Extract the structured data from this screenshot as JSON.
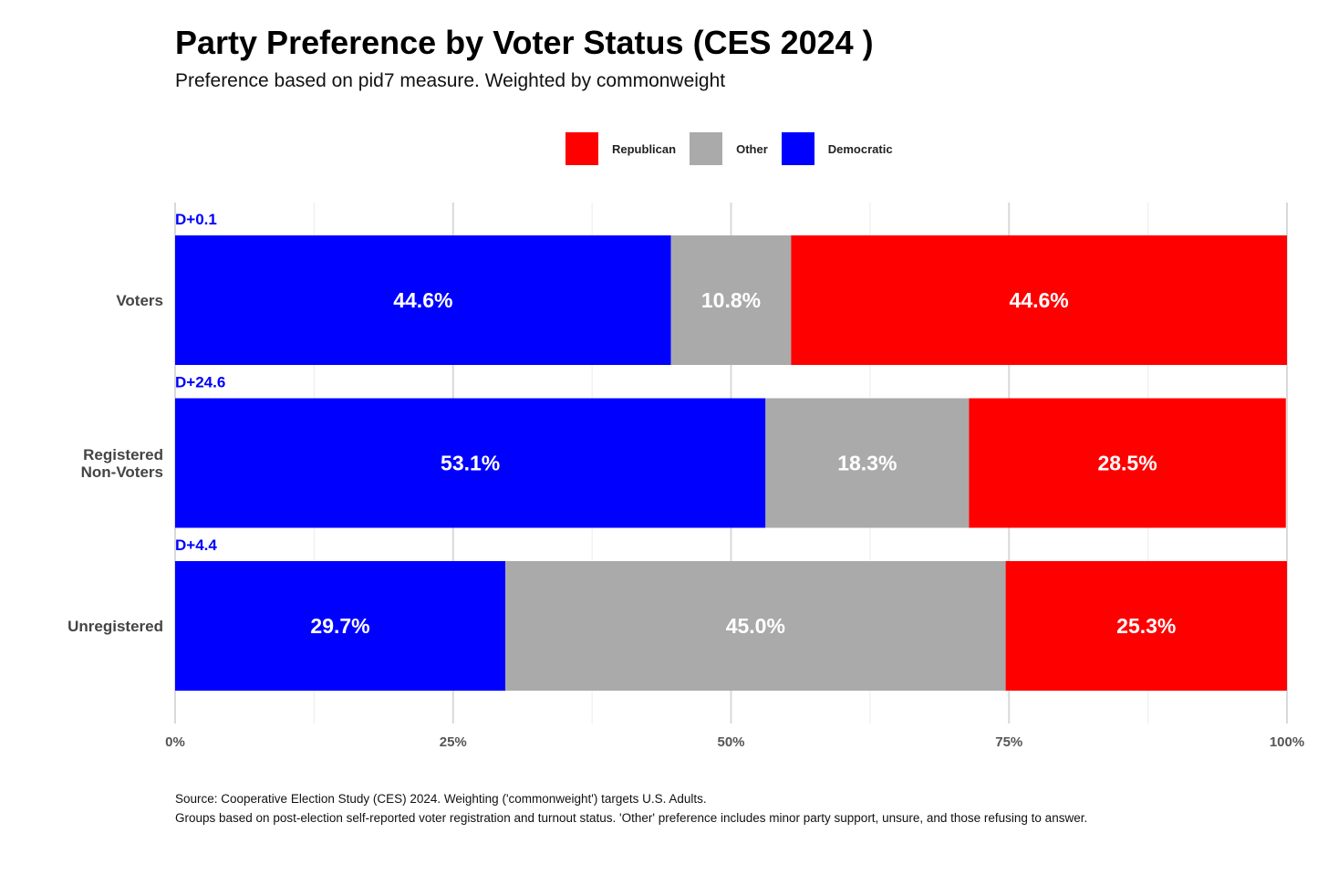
{
  "header": {
    "title": "Party Preference by Voter Status (CES 2024 )",
    "subtitle": "Preference based on pid7 measure. Weighted by commonweight"
  },
  "legend": {
    "items": [
      {
        "label": "Republican",
        "color": "#ff0000"
      },
      {
        "label": "Other",
        "color": "#aaaaaa"
      },
      {
        "label": "Democratic",
        "color": "#0000ff"
      }
    ]
  },
  "caption": {
    "line1": "Source: Cooperative Election Study (CES) 2024. Weighting ('commonweight') targets U.S. Adults.",
    "line2": "Groups based on post-election self-reported voter registration and turnout status. 'Other' preference includes minor party support, unsure, and those refusing to answer."
  },
  "chart_data": {
    "type": "bar",
    "orientation": "horizontal",
    "stacked": true,
    "title": "Party Preference by Voter Status (CES 2024 )",
    "subtitle": "Preference based on pid7 measure. Weighted by commonweight",
    "xlabel": "",
    "ylabel": "",
    "xlim": [
      0,
      100
    ],
    "x_ticks": [
      "0%",
      "25%",
      "50%",
      "75%",
      "100%"
    ],
    "grid": true,
    "legend_position": "top",
    "categories": [
      {
        "label_lines": [
          "Voters"
        ],
        "margin_label": "D+0.1"
      },
      {
        "label_lines": [
          "Registered",
          "Non-Voters"
        ],
        "margin_label": "D+24.6"
      },
      {
        "label_lines": [
          "Unregistered"
        ],
        "margin_label": "D+4.4"
      }
    ],
    "series": [
      {
        "name": "Democratic",
        "color": "#0000ff",
        "values": [
          44.6,
          53.1,
          29.7
        ],
        "labels": [
          "44.6%",
          "53.1%",
          "29.7%"
        ]
      },
      {
        "name": "Other",
        "color": "#aaaaaa",
        "values": [
          10.8,
          18.3,
          45.0
        ],
        "labels": [
          "10.8%",
          "18.3%",
          "45.0%"
        ]
      },
      {
        "name": "Republican",
        "color": "#ff0000",
        "values": [
          44.6,
          28.5,
          25.3
        ],
        "labels": [
          "44.6%",
          "28.5%",
          "25.3%"
        ]
      }
    ],
    "margin_label_color": "#0000ff"
  }
}
